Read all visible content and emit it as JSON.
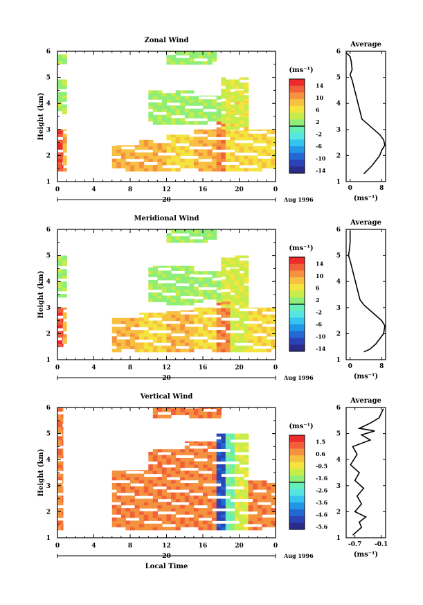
{
  "chart_data": [
    {
      "type": "heatmap",
      "title": "Zonal Wind",
      "ylabel": "Height (km)",
      "ylim": [
        1,
        6
      ],
      "yticks": [
        "1",
        "2",
        "3",
        "4",
        "5",
        "6"
      ],
      "xticks": [
        "0",
        "4",
        "8",
        "12",
        "16",
        "20",
        "0"
      ],
      "xlim_hours": [
        0,
        24
      ],
      "date_label": "20",
      "month_label": "Aug 1996",
      "colorbar": {
        "unit": "(ms⁻¹)",
        "labels": [
          "14",
          "10",
          "6",
          "2",
          "-2",
          "-6",
          "-10",
          "-14"
        ],
        "range": [
          -14,
          14
        ],
        "colors": [
          "#ee2a2a",
          "#f2603a",
          "#f5923f",
          "#f8c040",
          "#f4e43e",
          "#c8ec4a",
          "#8eee78",
          "#66eeb8",
          "#55e6e2",
          "#34c4ee",
          "#2196e4",
          "#2468d4",
          "#2a44b8",
          "#2b2c8a"
        ]
      },
      "cells": [
        {
          "t0": 0.0,
          "t1": 0.6,
          "z0": 1.4,
          "z1": 3.0,
          "v": 11
        },
        {
          "t0": 0.6,
          "t1": 1.0,
          "z0": 1.4,
          "z1": 3.0,
          "v": 7
        },
        {
          "t0": 0.0,
          "t1": 1.0,
          "z0": 3.6,
          "z1": 5.0,
          "v": 1
        },
        {
          "t0": 0.0,
          "t1": 1.0,
          "z0": 5.4,
          "z1": 6.0,
          "v": 1
        },
        {
          "t0": 6.0,
          "t1": 9.0,
          "z0": 1.4,
          "z1": 2.4,
          "v": 7
        },
        {
          "t0": 9.0,
          "t1": 12.0,
          "z0": 1.4,
          "z1": 2.6,
          "v": 8
        },
        {
          "t0": 12.0,
          "t1": 15.0,
          "z0": 1.4,
          "z1": 2.8,
          "v": 6
        },
        {
          "t0": 15.0,
          "t1": 17.5,
          "z0": 1.4,
          "z1": 3.0,
          "v": 7
        },
        {
          "t0": 17.5,
          "t1": 18.5,
          "z0": 1.4,
          "z1": 3.4,
          "v": 10
        },
        {
          "t0": 18.5,
          "t1": 21.0,
          "z0": 1.4,
          "z1": 4.5,
          "v": 5
        },
        {
          "t0": 21.0,
          "t1": 24.0,
          "z0": 1.4,
          "z1": 3.0,
          "v": 6
        },
        {
          "t0": 10.0,
          "t1": 15.0,
          "z0": 3.2,
          "z1": 4.5,
          "v": 1
        },
        {
          "t0": 15.0,
          "t1": 18.0,
          "z0": 3.2,
          "z1": 4.3,
          "v": 1
        },
        {
          "t0": 18.0,
          "t1": 21.0,
          "z0": 3.0,
          "z1": 5.0,
          "v": 4
        },
        {
          "t0": 12.0,
          "t1": 17.5,
          "z0": 5.5,
          "z1": 6.0,
          "v": 1
        }
      ],
      "profile": {
        "title": "Average",
        "xticks": [
          "0",
          "8"
        ],
        "xlim": [
          -1,
          9
        ],
        "xunit": "(ms⁻¹)",
        "x": [
          -1.0,
          0.0,
          0.3,
          0.5,
          0.0,
          0.5,
          1.0,
          1.5,
          2.0,
          2.5,
          3.0,
          4.5,
          6.0,
          7.5,
          8.5,
          8.8,
          8.0,
          7.5,
          6.5,
          5.5,
          3.5
        ],
        "z": [
          5.95,
          5.8,
          5.6,
          5.3,
          5.1,
          4.9,
          4.6,
          4.3,
          4.0,
          3.7,
          3.4,
          3.2,
          3.0,
          2.8,
          2.6,
          2.4,
          2.2,
          2.0,
          1.8,
          1.6,
          1.3
        ]
      }
    },
    {
      "type": "heatmap",
      "title": "Meridional Wind",
      "ylabel": "Height (km)",
      "ylim": [
        1,
        6
      ],
      "yticks": [
        "1",
        "2",
        "3",
        "4",
        "5",
        "6"
      ],
      "xticks": [
        "0",
        "4",
        "8",
        "12",
        "16",
        "20",
        "0"
      ],
      "xlim_hours": [
        0,
        24
      ],
      "date_label": "20",
      "month_label": "Aug 1996",
      "colorbar": {
        "unit": "(ms⁻¹)",
        "labels": [
          "14",
          "10",
          "6",
          "2",
          "-2",
          "-6",
          "-10",
          "-14"
        ],
        "range": [
          -14,
          14
        ],
        "colors": [
          "#ee2a2a",
          "#f2603a",
          "#f5923f",
          "#f8c040",
          "#f4e43e",
          "#c8ec4a",
          "#8eee78",
          "#66eeb8",
          "#55e6e2",
          "#34c4ee",
          "#2196e4",
          "#2468d4",
          "#2a44b8",
          "#2b2c8a"
        ]
      },
      "cells": [
        {
          "t0": 0.0,
          "t1": 0.6,
          "z0": 1.5,
          "z1": 3.0,
          "v": 11
        },
        {
          "t0": 0.6,
          "t1": 1.0,
          "z0": 1.5,
          "z1": 3.0,
          "v": 7
        },
        {
          "t0": 0.0,
          "t1": 1.0,
          "z0": 3.4,
          "z1": 5.0,
          "v": 1
        },
        {
          "t0": 6.0,
          "t1": 9.0,
          "z0": 1.3,
          "z1": 2.6,
          "v": 7
        },
        {
          "t0": 9.0,
          "t1": 12.0,
          "z0": 1.3,
          "z1": 2.8,
          "v": 6
        },
        {
          "t0": 12.0,
          "t1": 15.0,
          "z0": 1.3,
          "z1": 2.9,
          "v": 7
        },
        {
          "t0": 15.0,
          "t1": 17.5,
          "z0": 1.3,
          "z1": 3.0,
          "v": 6
        },
        {
          "t0": 17.5,
          "t1": 19.0,
          "z0": 1.3,
          "z1": 3.5,
          "v": 10
        },
        {
          "t0": 19.0,
          "t1": 21.0,
          "z0": 1.3,
          "z1": 4.5,
          "v": 4
        },
        {
          "t0": 21.0,
          "t1": 24.0,
          "z0": 1.3,
          "z1": 3.0,
          "v": 6
        },
        {
          "t0": 10.0,
          "t1": 15.0,
          "z0": 3.1,
          "z1": 4.6,
          "v": 1
        },
        {
          "t0": 15.0,
          "t1": 18.0,
          "z0": 3.2,
          "z1": 4.4,
          "v": 1
        },
        {
          "t0": 18.0,
          "t1": 21.0,
          "z0": 3.0,
          "z1": 5.0,
          "v": 3
        },
        {
          "t0": 12.0,
          "t1": 17.5,
          "z0": 5.5,
          "z1": 6.0,
          "v": 1
        }
      ],
      "profile": {
        "title": "Average",
        "xticks": [
          "0",
          "8"
        ],
        "xlim": [
          -1,
          9
        ],
        "xunit": "(ms⁻¹)",
        "x": [
          0.0,
          0.0,
          -0.2,
          -0.4,
          0.0,
          0.5,
          1.0,
          1.5,
          2.0,
          2.5,
          3.5,
          5.0,
          6.5,
          8.0,
          8.8,
          8.5,
          7.5,
          6.5,
          5.0,
          3.5
        ],
        "z": [
          5.95,
          5.5,
          5.2,
          5.0,
          4.8,
          4.5,
          4.2,
          3.9,
          3.6,
          3.3,
          3.1,
          2.9,
          2.7,
          2.5,
          2.3,
          2.0,
          1.8,
          1.6,
          1.4,
          1.3
        ]
      }
    },
    {
      "type": "heatmap",
      "title": "Vertical Wind",
      "ylabel": "Height (km)",
      "xlabel": "Local Time",
      "ylim": [
        1,
        6
      ],
      "yticks": [
        "1",
        "2",
        "3",
        "4",
        "5",
        "6"
      ],
      "xticks": [
        "0",
        "4",
        "8",
        "12",
        "16",
        "20",
        "0"
      ],
      "xlim_hours": [
        0,
        24
      ],
      "date_label": "20",
      "month_label": "Aug 1996",
      "colorbar": {
        "unit": "(ms⁻¹)",
        "labels": [
          "1.5",
          "0.6",
          "-0.5",
          "-1.6",
          "-2.6",
          "-3.6",
          "-4.6",
          "-5.6"
        ],
        "range": [
          -6.0,
          2.0
        ],
        "colors": [
          "#ee2a2a",
          "#f2603a",
          "#f5923f",
          "#f8c040",
          "#f4e43e",
          "#c8ec4a",
          "#8eee78",
          "#66eeb8",
          "#55e6e2",
          "#34c4ee",
          "#2196e4",
          "#2468d4",
          "#2a44b8",
          "#2b2c8a"
        ]
      },
      "cells": [
        {
          "t0": 0.0,
          "t1": 0.6,
          "z0": 1.3,
          "z1": 6.0,
          "v": 0.4
        },
        {
          "t0": 6.0,
          "t1": 10.0,
          "z0": 1.3,
          "z1": 3.6,
          "v": 0.8
        },
        {
          "t0": 10.0,
          "t1": 14.0,
          "z0": 1.3,
          "z1": 4.4,
          "v": 0.6
        },
        {
          "t0": 14.0,
          "t1": 17.5,
          "z0": 1.3,
          "z1": 4.7,
          "v": 0.8
        },
        {
          "t0": 17.5,
          "t1": 18.5,
          "z0": 1.3,
          "z1": 5.0,
          "v": -5.0
        },
        {
          "t0": 18.5,
          "t1": 19.5,
          "z0": 1.3,
          "z1": 5.0,
          "v": -2.5
        },
        {
          "t0": 19.5,
          "t1": 21.0,
          "z0": 1.3,
          "z1": 5.0,
          "v": -1.2
        },
        {
          "t0": 21.0,
          "t1": 24.0,
          "z0": 1.3,
          "z1": 3.2,
          "v": 0.8
        },
        {
          "t0": 10.5,
          "t1": 18.0,
          "z0": 5.6,
          "z1": 6.0,
          "v": 0.8
        }
      ],
      "profile": {
        "title": "Average",
        "xticks": [
          "-0.7",
          "-0.1"
        ],
        "xlim": [
          -0.9,
          0.0
        ],
        "xunit": "(ms⁻¹)",
        "x": [
          -0.05,
          -0.15,
          -0.35,
          -0.6,
          -0.25,
          -0.55,
          -0.35,
          -0.75,
          -0.65,
          -0.8,
          -0.6,
          -0.7,
          -0.5,
          -0.65,
          -0.55,
          -0.7,
          -0.45,
          -0.6,
          -0.55,
          -0.75
        ],
        "z": [
          5.95,
          5.6,
          5.4,
          5.2,
          5.1,
          4.95,
          4.75,
          4.5,
          4.2,
          3.8,
          3.5,
          3.2,
          2.9,
          2.6,
          2.3,
          2.0,
          1.8,
          1.6,
          1.4,
          1.1
        ]
      }
    }
  ]
}
